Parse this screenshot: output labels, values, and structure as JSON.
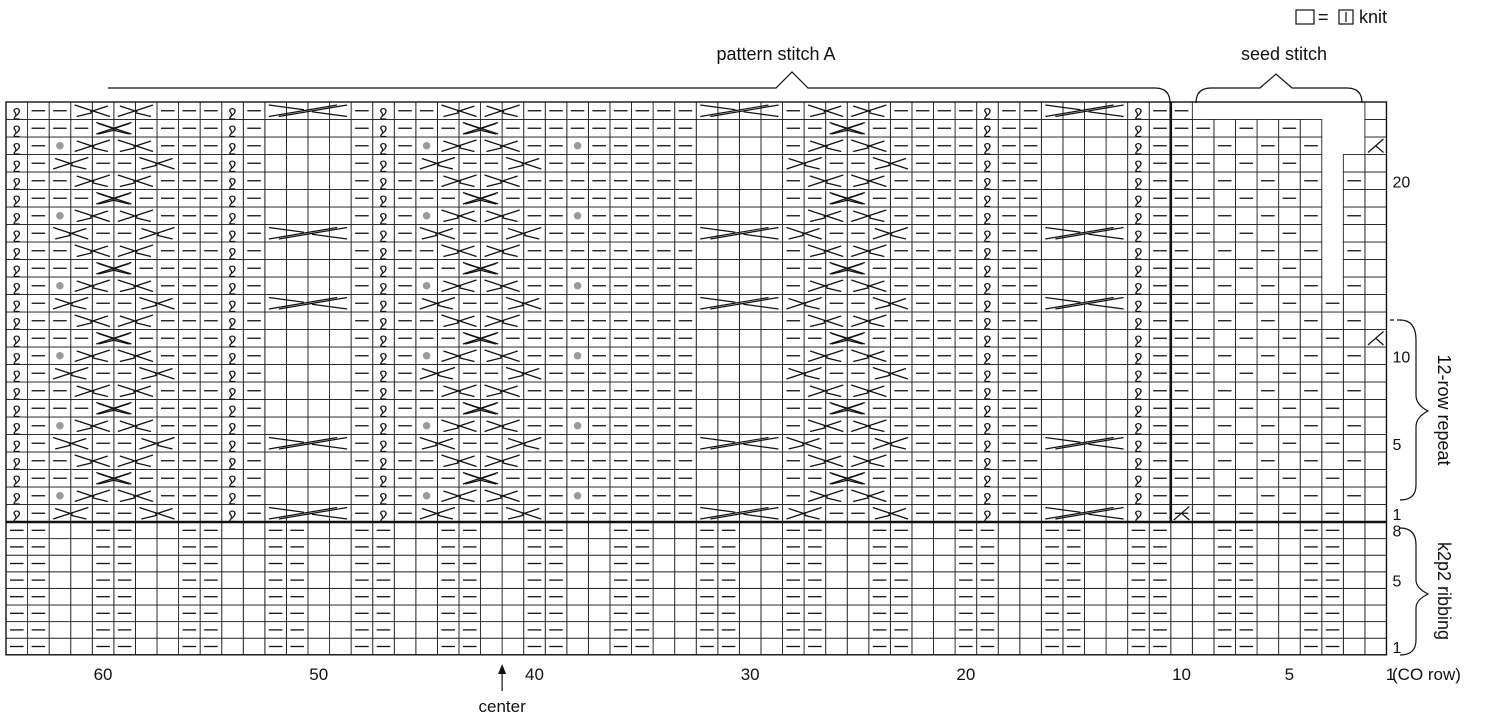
{
  "legend": {
    "equals": "=",
    "knit_label": "knit"
  },
  "sections": {
    "pattern_a": "pattern stitch A",
    "seed": "seed stitch",
    "repeat": "12-row repeat",
    "ribbing": "k2p2 ribbing",
    "center": "center"
  },
  "x_axis": {
    "labels": [
      "60",
      "50",
      "40",
      "30",
      "20",
      "10",
      "5",
      "1"
    ],
    "stitches": [
      60,
      50,
      40,
      30,
      20,
      10,
      5,
      1
    ],
    "co_row": "(CO row)"
  },
  "y_axis": {
    "pattern_rows": [
      "20",
      "10",
      "5",
      "1"
    ],
    "pattern_row_values": [
      20,
      10,
      5,
      1
    ],
    "rib_rows": [
      "8",
      "5",
      "1"
    ],
    "rib_row_values": [
      8,
      5,
      1
    ]
  },
  "chart": {
    "total_stitches": 64,
    "pattern_stitch_a": [
      10,
      64
    ],
    "seed_stitch": [
      1,
      9
    ],
    "pattern_rows": 24,
    "rib_rows": 8,
    "center_stitch": 42,
    "symbols": [
      "knit",
      "purl",
      "twisted-knit",
      "cable-cross",
      "bobble",
      "decrease"
    ]
  },
  "colors": {
    "ink": "#111111",
    "grid": "#222222",
    "bobble": "#9a9a9a"
  }
}
